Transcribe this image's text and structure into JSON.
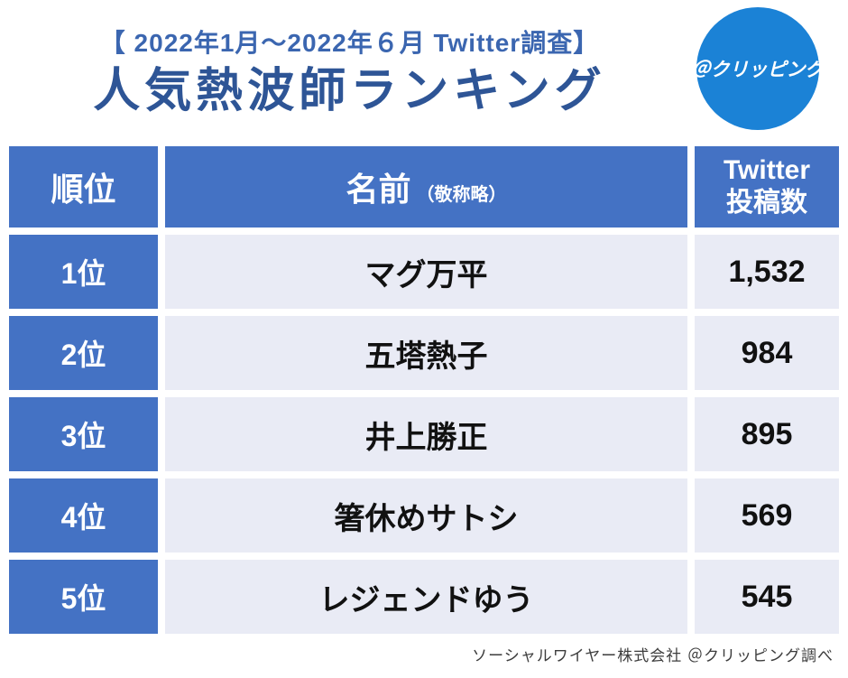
{
  "header": {
    "survey_period": "【 2022年1月～2022年６月 Twitter調査】",
    "title": "人気熱波師ランキング",
    "logo_text": "＠クリッピング"
  },
  "table": {
    "columns": {
      "rank": "順位",
      "name": "名前",
      "name_note": "（敬称略）",
      "count_line1": "Twitter",
      "count_line2": "投稿数"
    },
    "rows": [
      {
        "rank": "1位",
        "name": "マグ万平",
        "count": "1,532"
      },
      {
        "rank": "2位",
        "name": "五塔熱子",
        "count": "984"
      },
      {
        "rank": "3位",
        "name": "井上勝正",
        "count": "895"
      },
      {
        "rank": "4位",
        "name": "箸休めサトシ",
        "count": "569"
      },
      {
        "rank": "5位",
        "name": "レジェンドゆう",
        "count": "545"
      }
    ]
  },
  "footer": {
    "source": "ソーシャルワイヤー株式会社 ＠クリッピング調べ"
  },
  "colors": {
    "primary_blue": "#4472C4",
    "title_blue": "#2E5596",
    "logo_blue": "#1B82D6",
    "row_background": "#E9EBF5"
  },
  "chart_data": {
    "type": "table",
    "title": "人気熱波師ランキング",
    "subtitle": "【 2022年1月～2022年６月 Twitter調査】",
    "columns": [
      "順位",
      "名前（敬称略）",
      "Twitter投稿数"
    ],
    "rows": [
      [
        "1位",
        "マグ万平",
        1532
      ],
      [
        "2位",
        "五塔熱子",
        984
      ],
      [
        "3位",
        "井上勝正",
        895
      ],
      [
        "4位",
        "箸休めサトシ",
        569
      ],
      [
        "5位",
        "レジェンドゆう",
        545
      ]
    ],
    "source_note": "ソーシャルワイヤー株式会社 ＠クリッピング調べ"
  }
}
